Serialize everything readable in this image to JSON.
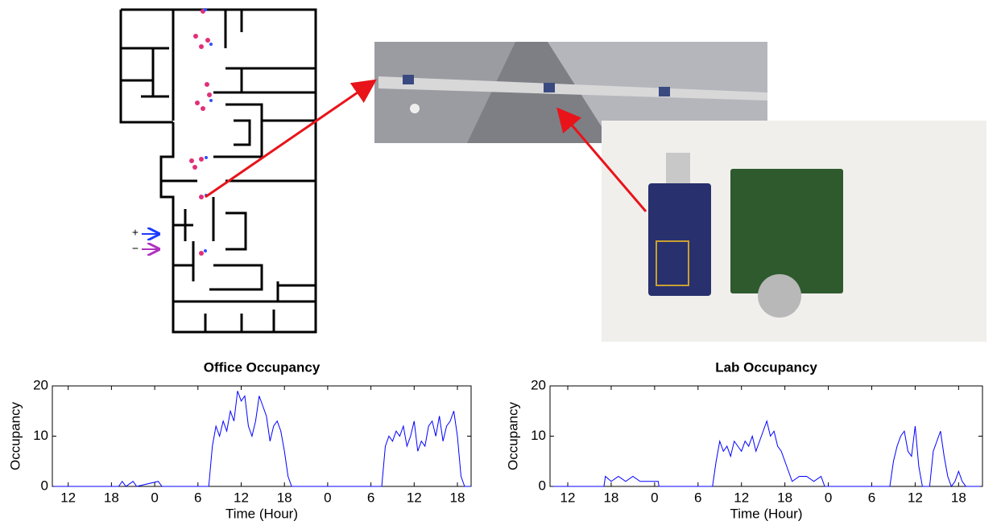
{
  "floorplan_legend": {
    "plus": "+",
    "minus": "−"
  },
  "chart_data": [
    {
      "type": "line",
      "title": "Office Occupancy",
      "x_label": "Time (Hour)",
      "y_label": "Occupancy",
      "color": "#0000ff",
      "xlim": [
        9.8,
        67.9
      ],
      "ylim": [
        0,
        20
      ],
      "yticks": [
        0,
        10,
        20
      ],
      "grid": false,
      "xticks": [
        {
          "value": 12,
          "label": "12"
        },
        {
          "value": 18,
          "label": "18"
        },
        {
          "value": 24,
          "label": "0"
        },
        {
          "value": 30,
          "label": "6"
        },
        {
          "value": 36,
          "label": "12"
        },
        {
          "value": 42,
          "label": "18"
        },
        {
          "value": 48,
          "label": "0"
        },
        {
          "value": 54,
          "label": "6"
        },
        {
          "value": 60,
          "label": "12"
        },
        {
          "value": 66,
          "label": "18"
        }
      ],
      "x": [
        10,
        19,
        19.5,
        20,
        21,
        21.5,
        24.5,
        25,
        31.5,
        32,
        32.5,
        33,
        33.5,
        34,
        34.5,
        35,
        35.5,
        36,
        36.5,
        37,
        37.5,
        38,
        38.5,
        39,
        39.5,
        40,
        40.5,
        41,
        41.5,
        42,
        42.5,
        43,
        55.5,
        56,
        56.5,
        57,
        57.5,
        58,
        58.5,
        59,
        59.5,
        60,
        60.5,
        61,
        61.5,
        62,
        62.5,
        63,
        63.5,
        64,
        64.5,
        65,
        65.5,
        66,
        66.5,
        67,
        67.9
      ],
      "values": [
        0,
        0,
        1,
        0,
        1,
        0,
        1,
        0,
        0,
        8,
        12,
        10,
        13,
        11,
        15,
        13,
        19,
        17,
        18,
        12,
        10,
        13,
        18,
        16,
        14,
        9,
        12,
        13,
        11,
        7,
        2,
        0,
        0,
        8,
        10,
        9,
        11,
        10,
        12,
        8,
        10,
        13,
        7,
        9,
        8,
        12,
        13,
        10,
        14,
        9,
        12,
        13,
        15,
        10,
        2,
        0,
        0
      ]
    },
    {
      "type": "line",
      "title": "Lab Occupancy",
      "x_label": "Time (Hour)",
      "y_label": "Occupancy",
      "color": "#0000ff",
      "xlim": [
        9.55,
        69.3
      ],
      "ylim": [
        0,
        20
      ],
      "yticks": [
        0,
        10,
        20
      ],
      "grid": false,
      "xticks": [
        {
          "value": 12,
          "label": "12"
        },
        {
          "value": 18,
          "label": "18"
        },
        {
          "value": 24,
          "label": "0"
        },
        {
          "value": 30,
          "label": "6"
        },
        {
          "value": 36,
          "label": "12"
        },
        {
          "value": 42,
          "label": "18"
        },
        {
          "value": 48,
          "label": "0"
        },
        {
          "value": 54,
          "label": "6"
        },
        {
          "value": 60,
          "label": "12"
        },
        {
          "value": 66,
          "label": "18"
        }
      ],
      "x": [
        10,
        17,
        17.2,
        18,
        19,
        20,
        21,
        22,
        23,
        24.5,
        24.6,
        32,
        32.5,
        33,
        33.5,
        34,
        34.5,
        35,
        35.5,
        36,
        36.5,
        37,
        37.5,
        38,
        38.5,
        39,
        39.5,
        40,
        40.5,
        41,
        41.5,
        42,
        42.5,
        43,
        44,
        45,
        46,
        47,
        47.5,
        56.5,
        57,
        57.5,
        58,
        58.5,
        59,
        59.5,
        60,
        60.5,
        61,
        62,
        62.5,
        63,
        63.5,
        64,
        64.5,
        65,
        65.5,
        66,
        66.5,
        67,
        69
      ],
      "values": [
        0,
        0,
        2,
        1,
        2,
        1,
        2,
        1,
        1,
        1,
        0,
        0,
        5,
        9,
        7,
        8,
        6,
        9,
        8,
        7,
        9,
        8,
        10,
        7,
        9,
        11,
        13,
        10,
        11,
        8,
        7,
        5,
        3,
        1,
        2,
        2,
        1,
        2,
        0,
        0,
        5,
        8,
        10,
        11,
        7,
        6,
        12,
        4,
        0,
        0,
        7,
        9,
        11,
        6,
        2,
        0,
        1,
        3,
        1,
        0,
        0
      ]
    }
  ]
}
